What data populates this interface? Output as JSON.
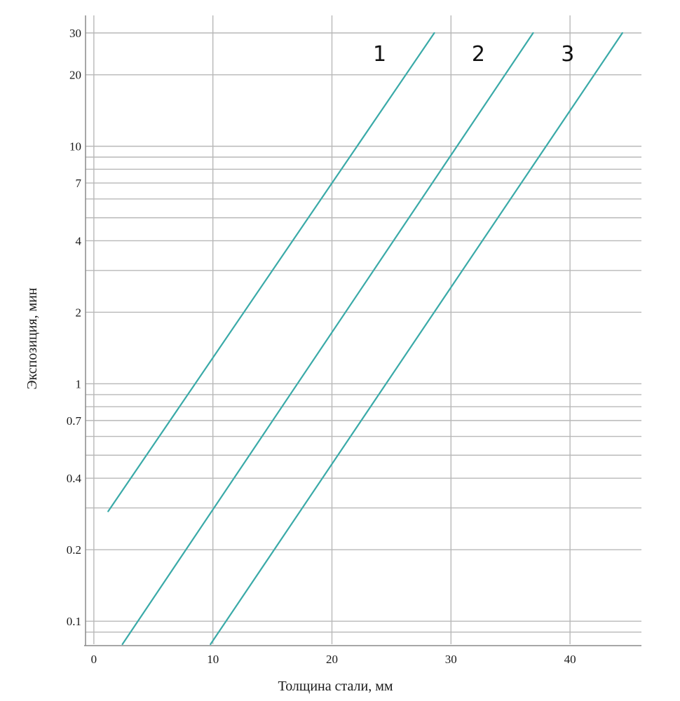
{
  "chart_data": {
    "type": "line",
    "title": "",
    "xlabel": "Толщина стали, мм",
    "ylabel": "Экспозиция, мин",
    "xlim": [
      -0.7,
      46
    ],
    "ylim": [
      0.08,
      30
    ],
    "yscale": "log",
    "grid": true,
    "x_ticks": [
      0,
      10,
      20,
      30,
      40
    ],
    "y_ticks": [
      0.1,
      0.2,
      0.4,
      0.7,
      1,
      2,
      4,
      7,
      10,
      20,
      30
    ],
    "y_ticks_labels": [
      "0.1",
      "0.2",
      "0.4",
      "0.7",
      "1",
      "2",
      "4",
      "7",
      "10",
      "20",
      "30"
    ],
    "y_minor_gridlines": [
      0.09,
      0.3,
      0.5,
      0.6,
      0.8,
      0.9,
      3,
      5,
      6,
      8,
      9
    ],
    "line_color": "#3aaaa8",
    "grid_color": "#b8b8b8",
    "series": [
      {
        "name": "1",
        "points": [
          [
            1.2,
            0.29
          ],
          [
            28.6,
            30
          ]
        ]
      },
      {
        "name": "2",
        "points": [
          [
            2.4,
            0.08
          ],
          [
            36.9,
            30
          ]
        ]
      },
      {
        "name": "3",
        "points": [
          [
            9.8,
            0.08
          ],
          [
            44.4,
            30
          ]
        ]
      }
    ]
  }
}
